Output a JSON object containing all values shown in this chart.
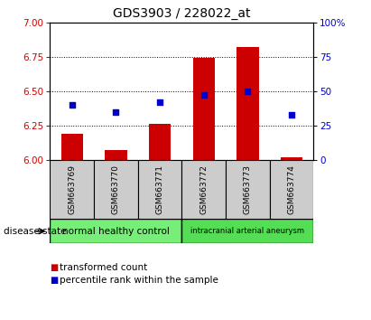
{
  "title": "GDS3903 / 228022_at",
  "samples": [
    "GSM663769",
    "GSM663770",
    "GSM663771",
    "GSM663772",
    "GSM663773",
    "GSM663774"
  ],
  "transformed_counts": [
    6.19,
    6.07,
    6.26,
    6.74,
    6.82,
    6.02
  ],
  "percentile_ranks": [
    40,
    35,
    42,
    47,
    50,
    33
  ],
  "ylim_left": [
    6,
    7
  ],
  "ylim_right": [
    0,
    100
  ],
  "yticks_left": [
    6,
    6.25,
    6.5,
    6.75,
    7
  ],
  "yticks_right": [
    0,
    25,
    50,
    75,
    100
  ],
  "bar_color": "#cc0000",
  "dot_color": "#0000cc",
  "bar_width": 0.5,
  "groups": [
    {
      "label": "normal healthy control",
      "samples_idx": [
        0,
        1,
        2
      ],
      "color": "#77ee77"
    },
    {
      "label": "intracranial arterial aneurysm",
      "samples_idx": [
        3,
        4,
        5
      ],
      "color": "#55dd55"
    }
  ],
  "disease_state_label": "disease state",
  "legend_bar_label": "transformed count",
  "legend_dot_label": "percentile rank within the sample",
  "title_fontsize": 10,
  "tick_label_color_left": "#cc0000",
  "tick_label_color_right": "#0000cc",
  "sample_box_color": "#cccccc",
  "plot_bg_color": "#ffffff"
}
